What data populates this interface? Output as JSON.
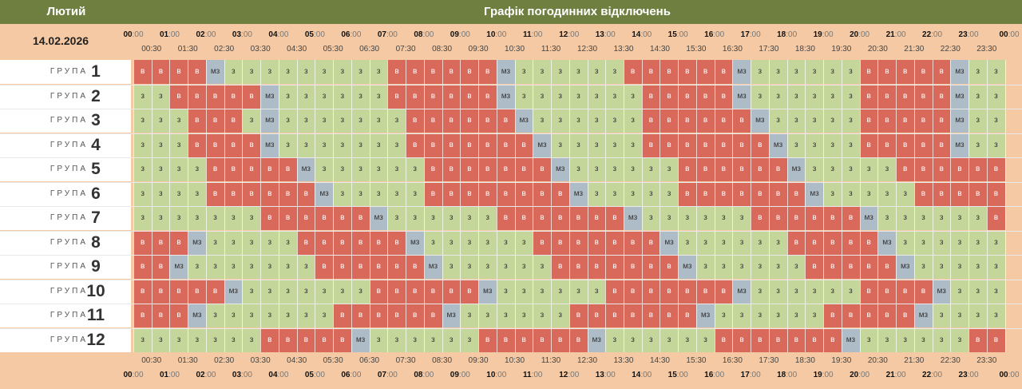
{
  "header": {
    "month": "Лютий",
    "title": "Графік погодинних відключень"
  },
  "date": "14.02.2026",
  "group_word": "ГРУПА",
  "hours": [
    "00",
    "01",
    "02",
    "03",
    "04",
    "05",
    "06",
    "07",
    "08",
    "09",
    "10",
    "11",
    "12",
    "13",
    "14",
    "15",
    "16",
    "17",
    "18",
    "19",
    "20",
    "21",
    "22",
    "23",
    "00"
  ],
  "hour_suffix": ":00",
  "half_hours": [
    "00:30",
    "01:30",
    "02:30",
    "03:30",
    "04:30",
    "05:30",
    "06:30",
    "07:30",
    "08:30",
    "09:30",
    "10:30",
    "11:30",
    "12:30",
    "13:30",
    "14:30",
    "15:30",
    "16:30",
    "17:30",
    "18:30",
    "19:30",
    "20:30",
    "21:30",
    "22:30",
    "23:30"
  ],
  "status_labels": {
    "b": "в",
    "z": "з",
    "m": "мз"
  },
  "status_colors": {
    "b": "#d9695a",
    "z": "#c5d69b",
    "m": "#aebcc7"
  },
  "groups": [
    {
      "number": "1",
      "cells": "bbbbmzzzzzzzzzbbbbbbmzzzzzzbbbbbbmzzzzzzbbbbbmzzzzz"
    },
    {
      "number": "2",
      "cells": "zzbbbbbmzzzzzzbbbbbbmzzzzzzzbbbbbmzzzzzzbbbbbmzzzzz"
    },
    {
      "number": "3",
      "cells": "zzzbbbzmzzzzzzzbbbbbbmzzzzzzbbbbbbmzzzzzbbbbbmzzzzz"
    },
    {
      "number": "4",
      "cells": "zzzbbbbmzzzzzzzbbbbbbbmzzzzzbbbbbbbmzzzzbbbbbmzzzzz"
    },
    {
      "number": "5",
      "cells": "zzzzbbbbbmzzzzzzbbbbbbbmzzzzzzbbbbbbmzzzzzbbbbbbmzz"
    },
    {
      "number": "6",
      "cells": "zzzzbbbbbbmzzzzzbbbbbbbbmzzzzzbbbbbbbmzzzzzbbbbbbmz"
    },
    {
      "number": "7",
      "cells": "zzzzzzzbbbbbbmzzzzzzbbbbbbbmzzzzzzbbbbbbmzzzzzzbbbm"
    },
    {
      "number": "8",
      "cells": "bbbmzzzzzbbbbbbmzzzzzzbbbbbbbmzzzzzzbbbbbmzzzzzzbbb"
    },
    {
      "number": "9",
      "cells": "bbmzzzzzzzbbbbbbmzzzzzzbbbbbbbmzzzzzzbbbbbmzzzzzzbb"
    },
    {
      "number": "10",
      "cells": "bbbbbmzzzzzzzbbbbbbmzzzzzzbbbbbbbmzzzzzzbbbbmzzzzzb"
    },
    {
      "number": "11",
      "cells": "bbbmzzzzzzzbbbbbbmzzzzzzbbbbbbbmzzzzzzbbbbbmzzzzzbb"
    },
    {
      "number": "12",
      "cells": "zzzzzzzbbbbbmzzzzzzbbbbbbmzzzzzzbbbbbbbmzzzzzzbbbbm"
    }
  ]
}
